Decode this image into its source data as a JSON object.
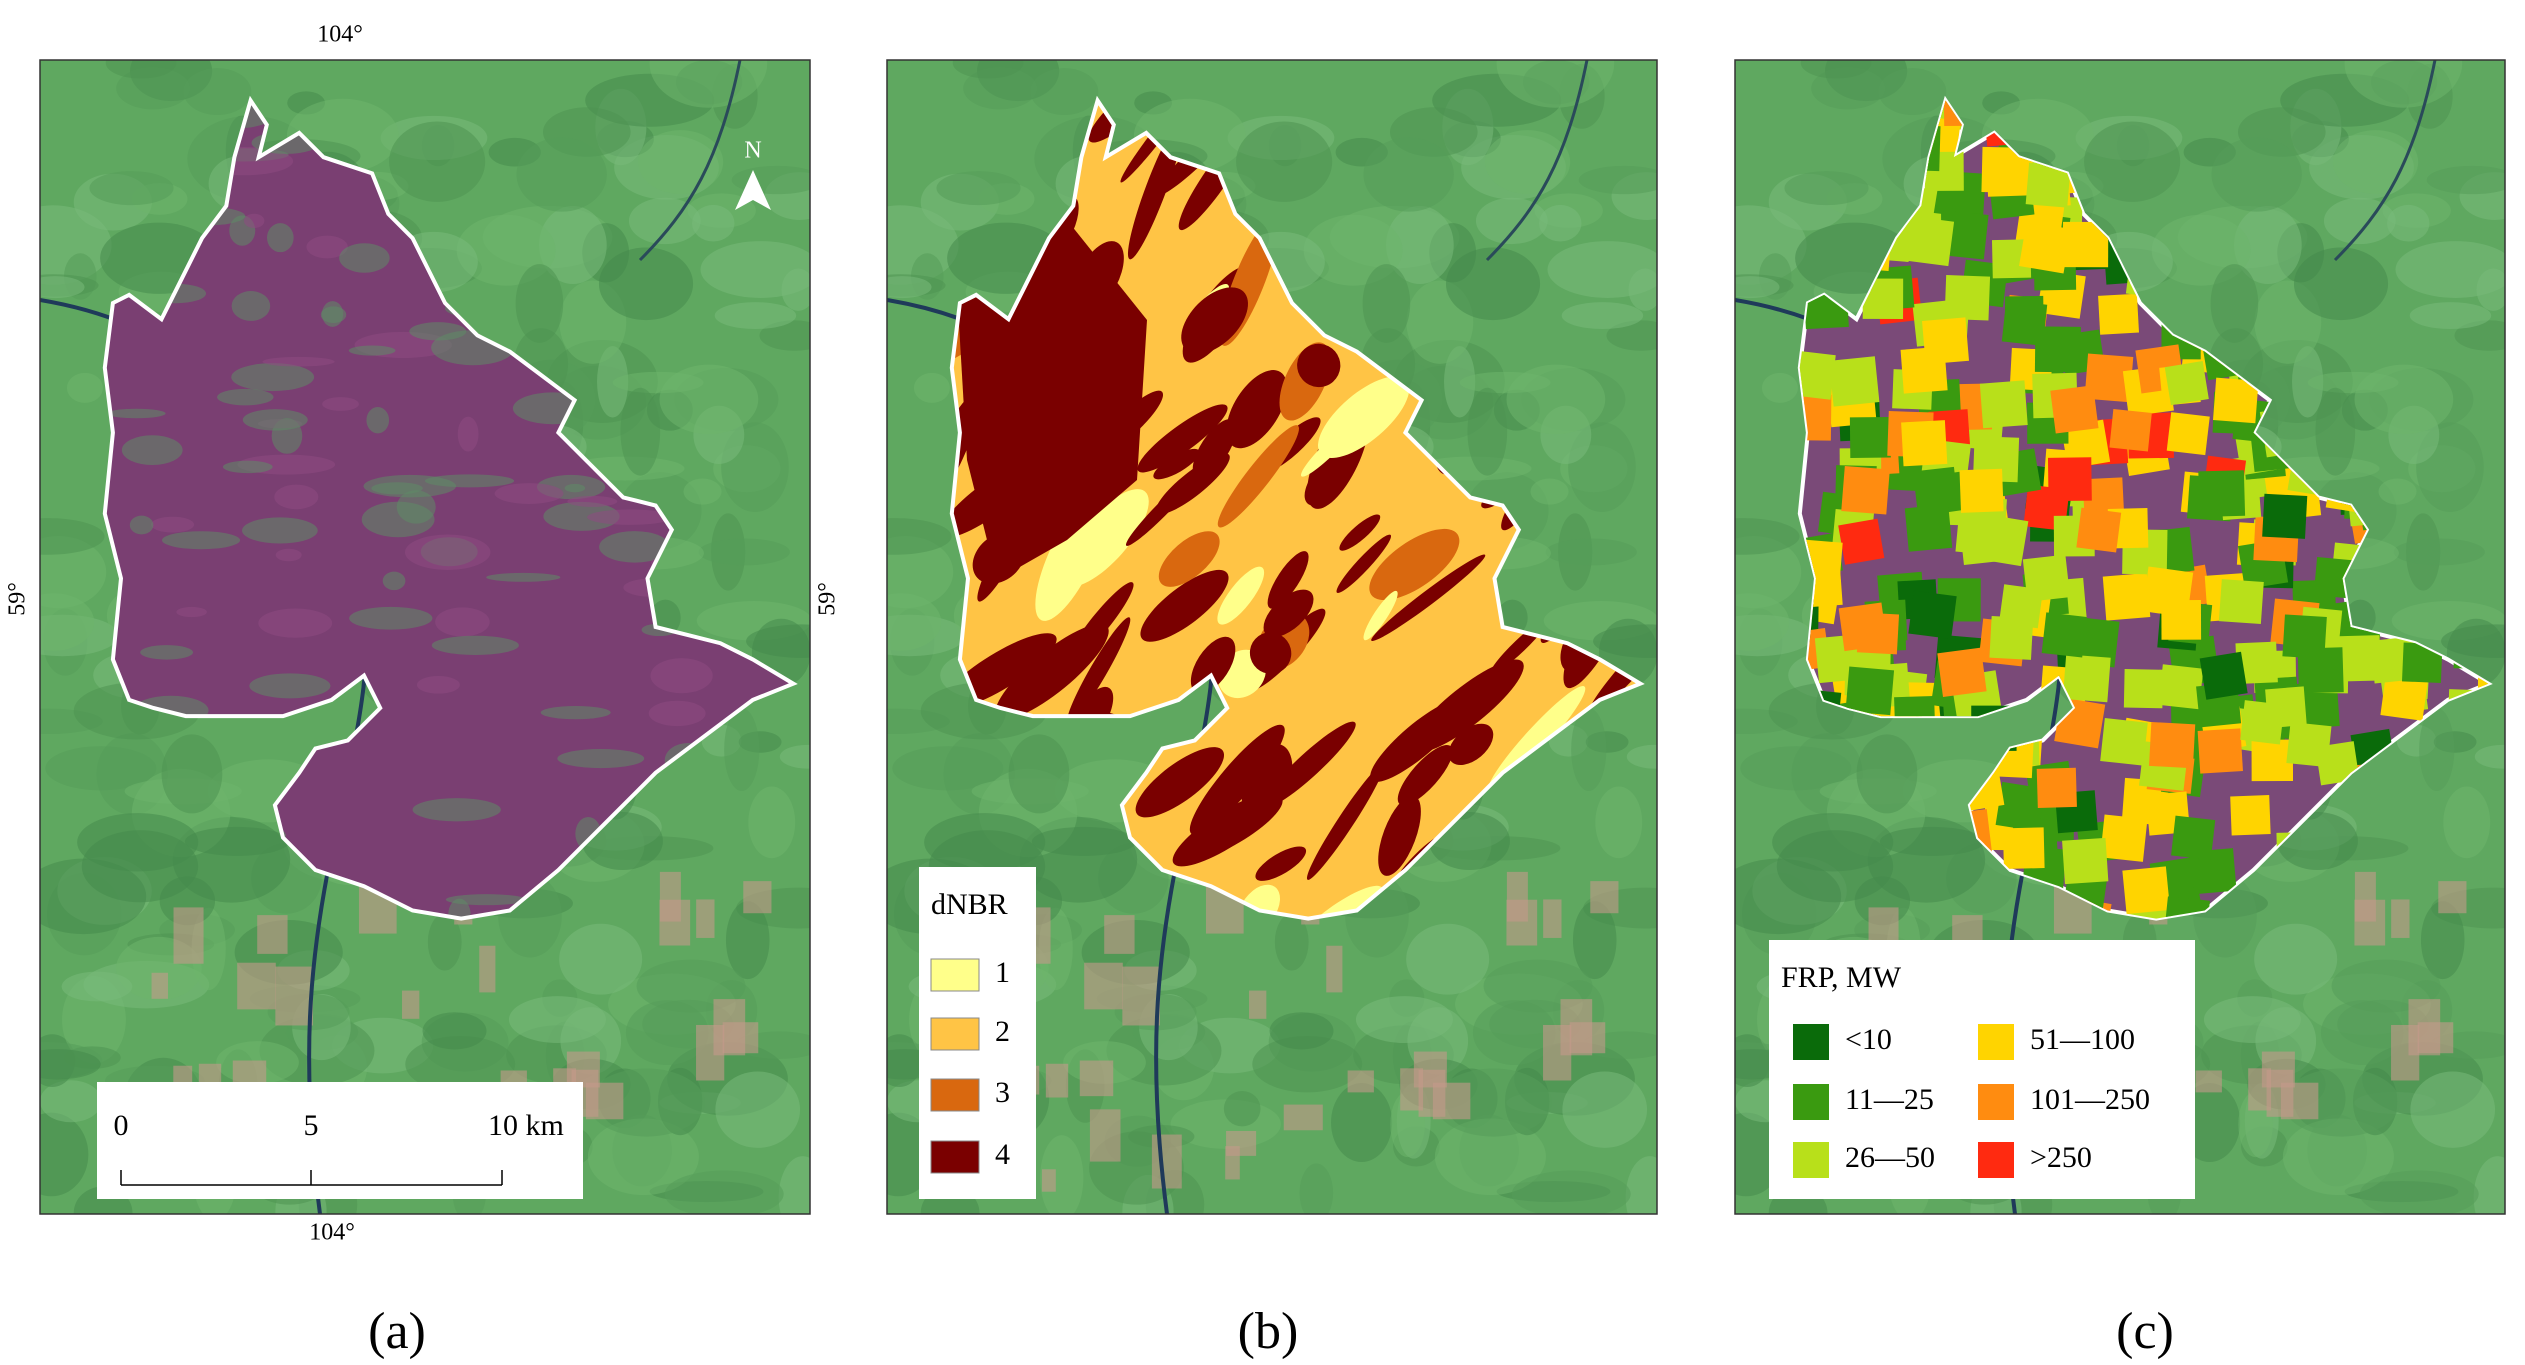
{
  "panels": [
    {
      "label": "(a)"
    },
    {
      "label": "(b)"
    },
    {
      "label": "(c)"
    }
  ],
  "graticule": {
    "top": "104°",
    "bottom": "104°",
    "left": "59°",
    "right": "59°"
  },
  "north_arrow": "N",
  "scale_bar": {
    "labels": [
      "0",
      "5",
      "10 km"
    ]
  },
  "dnbr_legend": {
    "title": "dNBR",
    "items": [
      {
        "label": "1",
        "color": "#ffff8a"
      },
      {
        "label": "2",
        "color": "#ffc445"
      },
      {
        "label": "3",
        "color": "#d9680f"
      },
      {
        "label": "4",
        "color": "#7a0000"
      }
    ]
  },
  "frp_legend": {
    "title": "FRP, MW",
    "items": [
      {
        "label": "<10",
        "color": "#0a6b0a"
      },
      {
        "label": "11—25",
        "color": "#3a9a10"
      },
      {
        "label": "26—50",
        "color": "#b8e01a"
      },
      {
        "label": "51—100",
        "color": "#ffd400"
      },
      {
        "label": "101—250",
        "color": "#ff8c10"
      },
      {
        "label": ">250",
        "color": "#ff2a10"
      }
    ]
  }
}
